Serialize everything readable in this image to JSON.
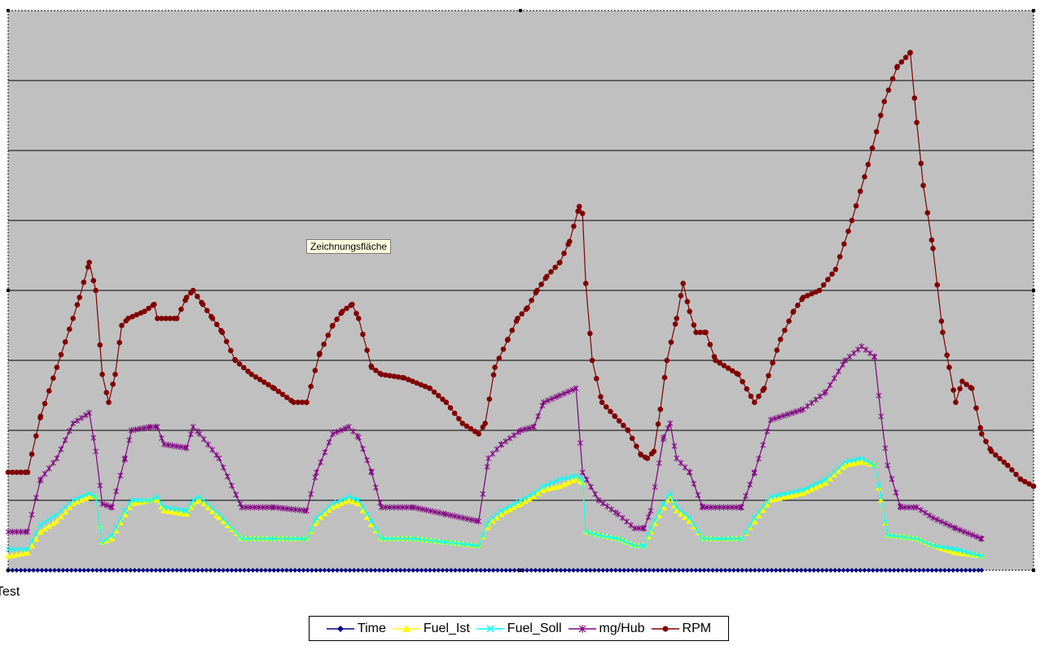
{
  "tooltip": "Zeichnungsfläche",
  "chart_data": {
    "type": "line",
    "xlabel": "Test",
    "ylabel": "",
    "title": "",
    "ylim": [
      0,
      8
    ],
    "grid": true,
    "legend_position": "bottom",
    "plot_background": "#c0c0c0",
    "series": [
      {
        "name": "Time",
        "color": "#000080",
        "marker": "diamond",
        "points": [
          [
            0,
            0
          ],
          [
            300,
            0
          ]
        ]
      },
      {
        "name": "Fuel_Ist",
        "color": "#ffff00",
        "marker": "triangle",
        "points": [
          [
            0,
            0.2
          ],
          [
            6,
            0.25
          ],
          [
            10,
            0.55
          ],
          [
            15,
            0.7
          ],
          [
            20,
            0.95
          ],
          [
            25,
            1.05
          ],
          [
            27,
            1.05
          ],
          [
            29,
            0.4
          ],
          [
            32,
            0.45
          ],
          [
            36,
            0.8
          ],
          [
            38,
            0.95
          ],
          [
            44,
            1.0
          ],
          [
            46,
            1.0
          ],
          [
            48,
            0.85
          ],
          [
            55,
            0.8
          ],
          [
            57,
            0.95
          ],
          [
            59,
            1.0
          ],
          [
            65,
            0.75
          ],
          [
            72,
            0.45
          ],
          [
            82,
            0.45
          ],
          [
            92,
            0.45
          ],
          [
            95,
            0.7
          ],
          [
            100,
            0.9
          ],
          [
            105,
            1.0
          ],
          [
            108,
            0.95
          ],
          [
            112,
            0.65
          ],
          [
            115,
            0.45
          ],
          [
            125,
            0.45
          ],
          [
            135,
            0.4
          ],
          [
            145,
            0.35
          ],
          [
            148,
            0.65
          ],
          [
            152,
            0.8
          ],
          [
            158,
            0.95
          ],
          [
            162,
            1.05
          ],
          [
            165,
            1.15
          ],
          [
            170,
            1.2
          ],
          [
            175,
            1.3
          ],
          [
            177,
            1.25
          ],
          [
            178,
            0.55
          ],
          [
            182,
            0.5
          ],
          [
            188,
            0.45
          ],
          [
            193,
            0.35
          ],
          [
            196,
            0.35
          ],
          [
            198,
            0.55
          ],
          [
            202,
            0.9
          ],
          [
            204,
            1.05
          ],
          [
            206,
            0.85
          ],
          [
            210,
            0.7
          ],
          [
            214,
            0.45
          ],
          [
            226,
            0.45
          ],
          [
            230,
            0.7
          ],
          [
            235,
            1.0
          ],
          [
            245,
            1.1
          ],
          [
            252,
            1.25
          ],
          [
            258,
            1.5
          ],
          [
            263,
            1.55
          ],
          [
            267,
            1.5
          ],
          [
            269,
            1.0
          ],
          [
            271,
            0.5
          ],
          [
            280,
            0.45
          ],
          [
            285,
            0.35
          ],
          [
            292,
            0.25
          ],
          [
            300,
            0.2
          ]
        ]
      },
      {
        "name": "Fuel_Soll",
        "color": "#00ffff",
        "marker": "x",
        "points": [
          [
            0,
            0.3
          ],
          [
            6,
            0.3
          ],
          [
            10,
            0.65
          ],
          [
            15,
            0.8
          ],
          [
            20,
            1.0
          ],
          [
            25,
            1.1
          ],
          [
            27,
            1.05
          ],
          [
            29,
            0.4
          ],
          [
            32,
            0.5
          ],
          [
            36,
            0.85
          ],
          [
            38,
            1.0
          ],
          [
            44,
            1.0
          ],
          [
            46,
            1.05
          ],
          [
            48,
            0.9
          ],
          [
            55,
            0.85
          ],
          [
            57,
            1.0
          ],
          [
            59,
            1.05
          ],
          [
            65,
            0.8
          ],
          [
            72,
            0.45
          ],
          [
            82,
            0.45
          ],
          [
            92,
            0.45
          ],
          [
            95,
            0.75
          ],
          [
            100,
            0.95
          ],
          [
            105,
            1.05
          ],
          [
            108,
            1.0
          ],
          [
            112,
            0.7
          ],
          [
            115,
            0.45
          ],
          [
            125,
            0.45
          ],
          [
            135,
            0.4
          ],
          [
            145,
            0.35
          ],
          [
            148,
            0.7
          ],
          [
            152,
            0.85
          ],
          [
            158,
            1.0
          ],
          [
            162,
            1.1
          ],
          [
            165,
            1.2
          ],
          [
            170,
            1.3
          ],
          [
            175,
            1.35
          ],
          [
            177,
            1.3
          ],
          [
            178,
            0.55
          ],
          [
            182,
            0.5
          ],
          [
            188,
            0.45
          ],
          [
            193,
            0.35
          ],
          [
            196,
            0.35
          ],
          [
            198,
            0.6
          ],
          [
            202,
            0.95
          ],
          [
            204,
            1.1
          ],
          [
            206,
            0.9
          ],
          [
            210,
            0.75
          ],
          [
            214,
            0.45
          ],
          [
            226,
            0.45
          ],
          [
            230,
            0.75
          ],
          [
            235,
            1.05
          ],
          [
            245,
            1.15
          ],
          [
            252,
            1.3
          ],
          [
            258,
            1.55
          ],
          [
            263,
            1.6
          ],
          [
            267,
            1.5
          ],
          [
            269,
            1.05
          ],
          [
            271,
            0.5
          ],
          [
            280,
            0.45
          ],
          [
            285,
            0.35
          ],
          [
            292,
            0.3
          ],
          [
            300,
            0.2
          ]
        ]
      },
      {
        "name": "mg/Hub",
        "color": "#800080",
        "marker": "asterisk",
        "points": [
          [
            0,
            0.55
          ],
          [
            6,
            0.55
          ],
          [
            10,
            1.3
          ],
          [
            15,
            1.6
          ],
          [
            20,
            2.1
          ],
          [
            25,
            2.25
          ],
          [
            27,
            1.7
          ],
          [
            29,
            0.95
          ],
          [
            32,
            0.9
          ],
          [
            36,
            1.6
          ],
          [
            38,
            2.0
          ],
          [
            44,
            2.05
          ],
          [
            46,
            2.05
          ],
          [
            48,
            1.8
          ],
          [
            55,
            1.75
          ],
          [
            57,
            2.05
          ],
          [
            59,
            1.95
          ],
          [
            65,
            1.6
          ],
          [
            72,
            0.9
          ],
          [
            82,
            0.9
          ],
          [
            92,
            0.85
          ],
          [
            95,
            1.4
          ],
          [
            100,
            1.95
          ],
          [
            105,
            2.05
          ],
          [
            108,
            1.9
          ],
          [
            112,
            1.4
          ],
          [
            115,
            0.9
          ],
          [
            125,
            0.9
          ],
          [
            135,
            0.8
          ],
          [
            145,
            0.7
          ],
          [
            148,
            1.6
          ],
          [
            152,
            1.8
          ],
          [
            158,
            2.0
          ],
          [
            162,
            2.05
          ],
          [
            165,
            2.4
          ],
          [
            170,
            2.5
          ],
          [
            175,
            2.6
          ],
          [
            177,
            1.4
          ],
          [
            182,
            1.0
          ],
          [
            188,
            0.8
          ],
          [
            193,
            0.6
          ],
          [
            196,
            0.6
          ],
          [
            198,
            0.85
          ],
          [
            202,
            1.9
          ],
          [
            204,
            2.1
          ],
          [
            206,
            1.6
          ],
          [
            210,
            1.4
          ],
          [
            214,
            0.9
          ],
          [
            226,
            0.9
          ],
          [
            230,
            1.4
          ],
          [
            235,
            2.15
          ],
          [
            245,
            2.3
          ],
          [
            252,
            2.55
          ],
          [
            258,
            3.0
          ],
          [
            263,
            3.2
          ],
          [
            267,
            3.05
          ],
          [
            269,
            2.2
          ],
          [
            271,
            1.5
          ],
          [
            275,
            0.9
          ],
          [
            280,
            0.9
          ],
          [
            285,
            0.75
          ],
          [
            292,
            0.6
          ],
          [
            300,
            0.45
          ]
        ]
      },
      {
        "name": "RPM",
        "color": "#800000",
        "marker": "circle",
        "points": [
          [
            0,
            1.4
          ],
          [
            6,
            1.4
          ],
          [
            10,
            2.2
          ],
          [
            15,
            2.9
          ],
          [
            20,
            3.6
          ],
          [
            22,
            3.9
          ],
          [
            25,
            4.4
          ],
          [
            27,
            4.0
          ],
          [
            29,
            2.8
          ],
          [
            31,
            2.4
          ],
          [
            33,
            2.8
          ],
          [
            35,
            3.5
          ],
          [
            37,
            3.6
          ],
          [
            42,
            3.7
          ],
          [
            45,
            3.8
          ],
          [
            46,
            3.6
          ],
          [
            52,
            3.6
          ],
          [
            55,
            3.9
          ],
          [
            57,
            4.0
          ],
          [
            60,
            3.8
          ],
          [
            63,
            3.6
          ],
          [
            66,
            3.4
          ],
          [
            70,
            3.0
          ],
          [
            75,
            2.8
          ],
          [
            82,
            2.6
          ],
          [
            88,
            2.4
          ],
          [
            92,
            2.4
          ],
          [
            96,
            3.1
          ],
          [
            100,
            3.5
          ],
          [
            103,
            3.7
          ],
          [
            106,
            3.8
          ],
          [
            108,
            3.6
          ],
          [
            112,
            2.9
          ],
          [
            115,
            2.8
          ],
          [
            122,
            2.75
          ],
          [
            130,
            2.6
          ],
          [
            135,
            2.4
          ],
          [
            140,
            2.1
          ],
          [
            145,
            1.95
          ],
          [
            147,
            2.1
          ],
          [
            150,
            2.9
          ],
          [
            154,
            3.3
          ],
          [
            157,
            3.6
          ],
          [
            160,
            3.75
          ],
          [
            163,
            4.0
          ],
          [
            166,
            4.2
          ],
          [
            170,
            4.4
          ],
          [
            173,
            4.7
          ],
          [
            176,
            5.2
          ],
          [
            177,
            5.1
          ],
          [
            178,
            4.1
          ],
          [
            180,
            3.0
          ],
          [
            183,
            2.4
          ],
          [
            187,
            2.2
          ],
          [
            191,
            2.0
          ],
          [
            195,
            1.65
          ],
          [
            197,
            1.6
          ],
          [
            199,
            1.7
          ],
          [
            201,
            2.3
          ],
          [
            203,
            3.0
          ],
          [
            206,
            3.6
          ],
          [
            208,
            4.1
          ],
          [
            210,
            3.7
          ],
          [
            212,
            3.4
          ],
          [
            215,
            3.4
          ],
          [
            218,
            3.0
          ],
          [
            225,
            2.8
          ],
          [
            230,
            2.4
          ],
          [
            233,
            2.6
          ],
          [
            238,
            3.3
          ],
          [
            242,
            3.7
          ],
          [
            245,
            3.9
          ],
          [
            250,
            4.0
          ],
          [
            255,
            4.3
          ],
          [
            260,
            5.0
          ],
          [
            265,
            5.8
          ],
          [
            270,
            6.7
          ],
          [
            274,
            7.2
          ],
          [
            278,
            7.4
          ],
          [
            280,
            6.4
          ],
          [
            282,
            5.5
          ],
          [
            285,
            4.6
          ],
          [
            288,
            3.4
          ],
          [
            290,
            2.9
          ],
          [
            292,
            2.4
          ],
          [
            294,
            2.7
          ],
          [
            297,
            2.6
          ],
          [
            300,
            1.95
          ],
          [
            303,
            1.7
          ],
          [
            308,
            1.5
          ],
          [
            312,
            1.3
          ],
          [
            316,
            1.2
          ]
        ]
      }
    ]
  }
}
